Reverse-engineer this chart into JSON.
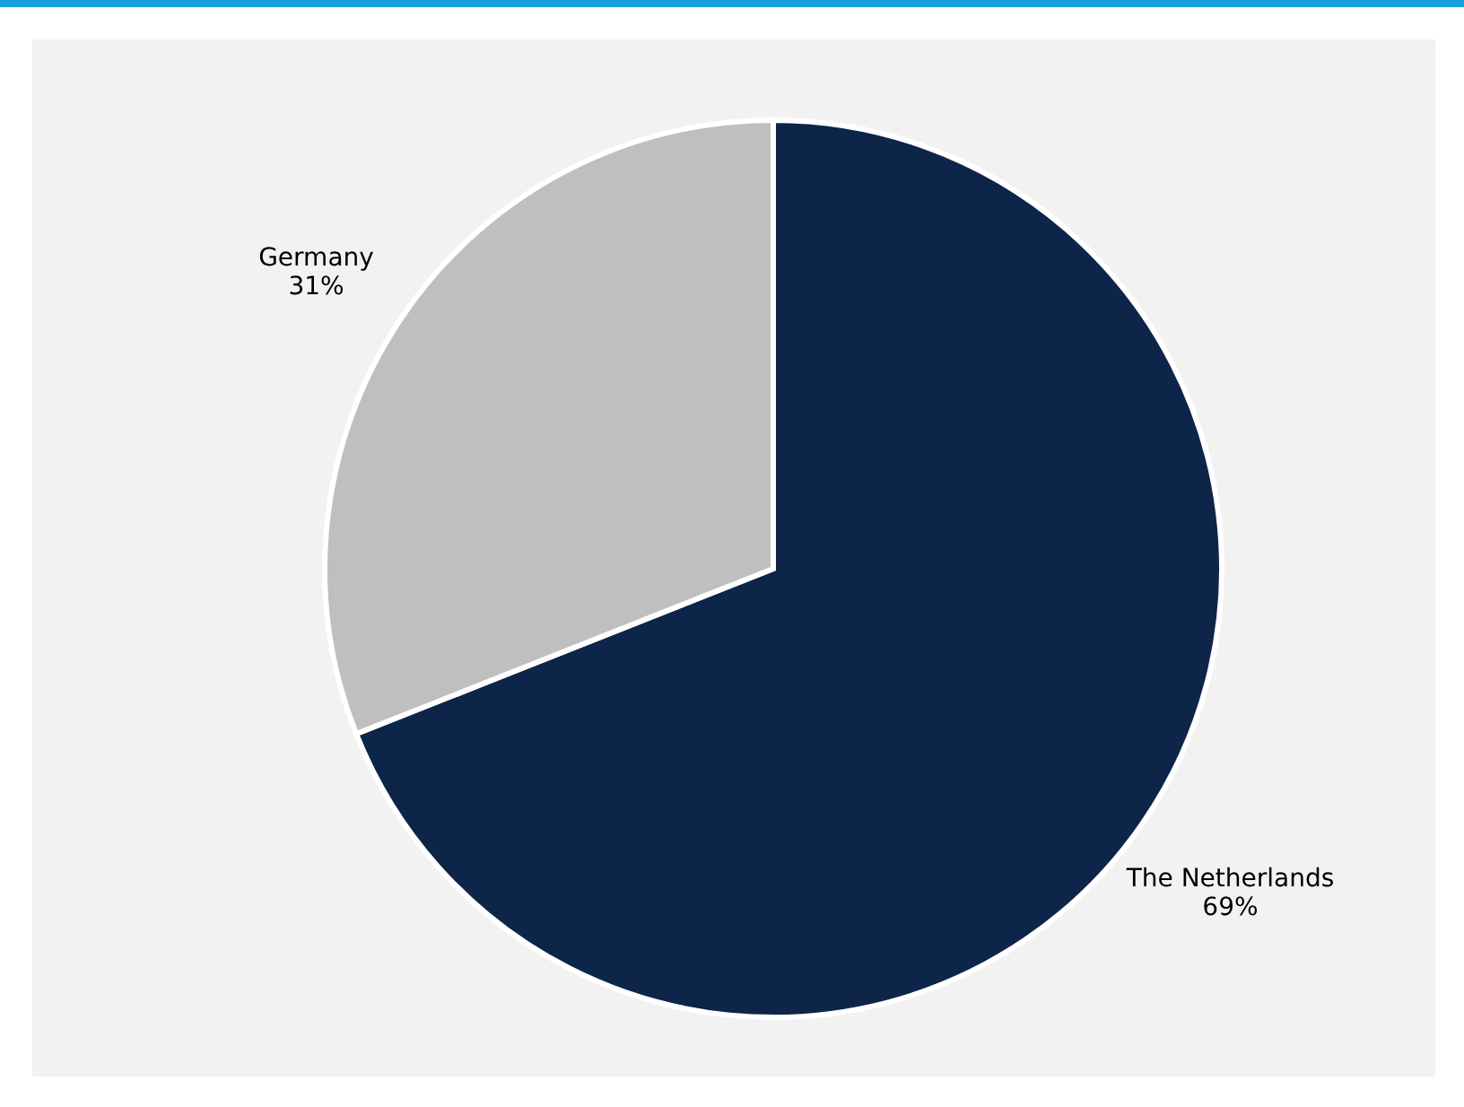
{
  "chart_data": {
    "type": "pie",
    "categories": [
      "The Netherlands",
      "Germany"
    ],
    "values": [
      69,
      31
    ],
    "colors": [
      "#0d2549",
      "#bfbfbf"
    ],
    "value_labels": [
      "69%",
      "31%"
    ]
  }
}
